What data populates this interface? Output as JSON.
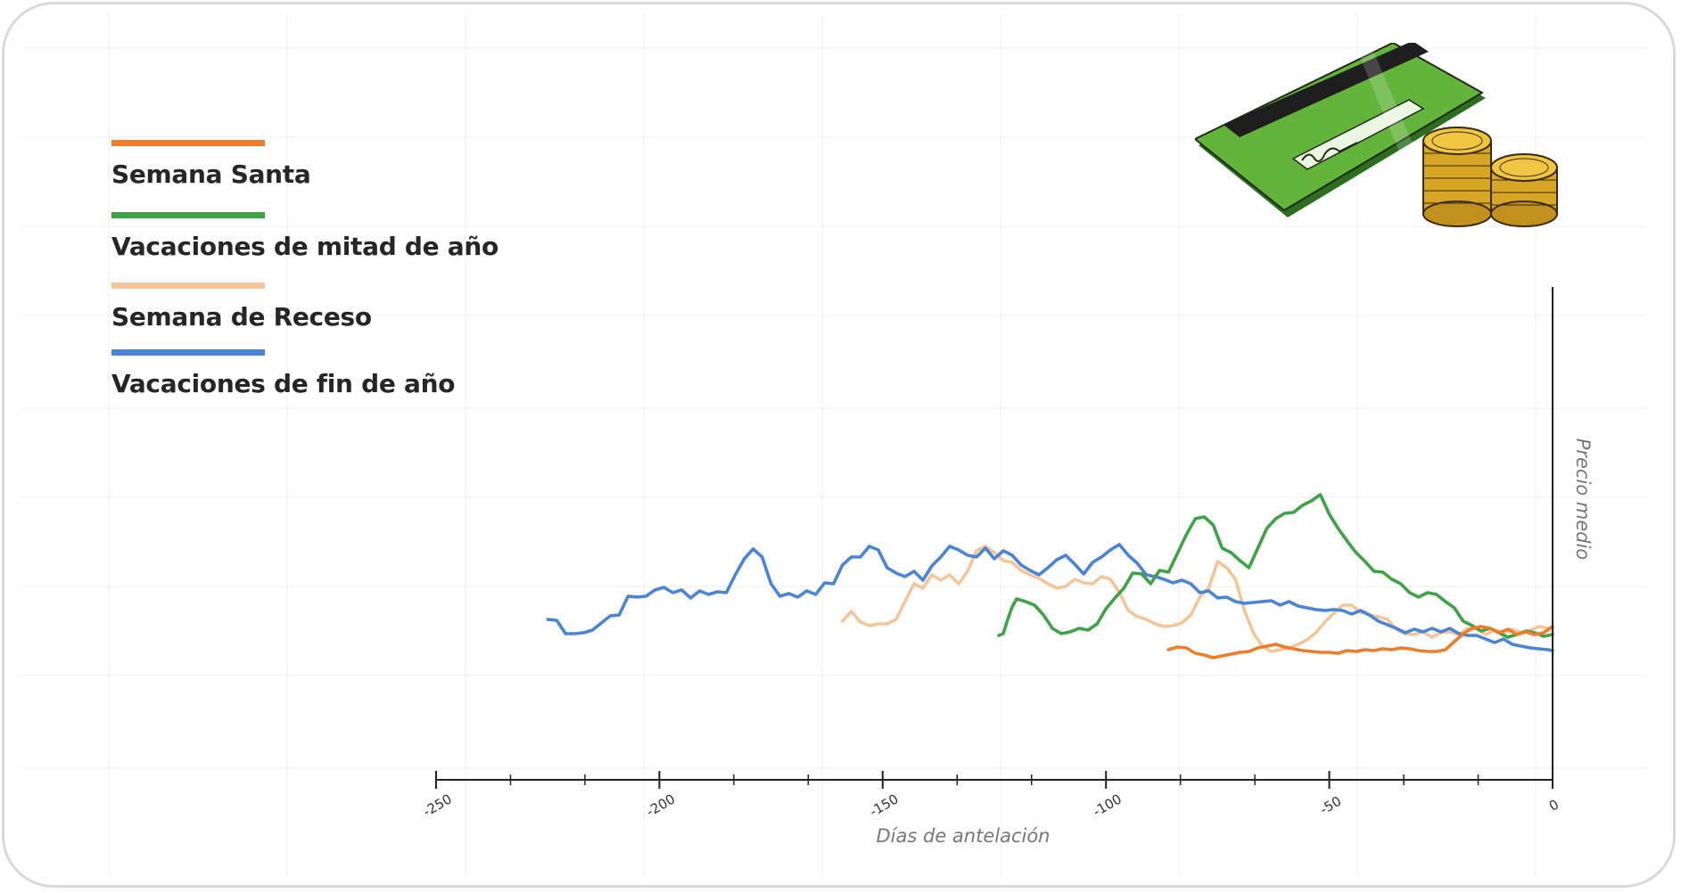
{
  "chart_data": {
    "type": "line",
    "xlabel": "Días de antelación",
    "ylabel": "Precio medio",
    "xlim": [
      -250,
      0
    ],
    "xticks": [
      -250,
      -200,
      -150,
      -100,
      -50,
      0
    ],
    "grid": true,
    "legend_position": "top-left",
    "series": [
      {
        "name": "Semana Santa",
        "color": "#f07c2a",
        "x": [
          -86,
          -84,
          -82,
          -80,
          -78,
          -76,
          -74,
          -72,
          -70,
          -68,
          -66,
          -64,
          -62,
          -60,
          -58,
          -56,
          -54,
          -52,
          -50,
          -48,
          -46,
          -44,
          -42,
          -40,
          -38,
          -36,
          -34,
          -32,
          -30,
          -28,
          -26,
          -24,
          -22,
          -20,
          -18,
          -16,
          -14,
          -12,
          -10,
          -8,
          -6,
          -4,
          -2,
          0
        ],
        "y": [
          0.46,
          0.49,
          0.48,
          0.42,
          0.4,
          0.37,
          0.39,
          0.41,
          0.43,
          0.44,
          0.48,
          0.5,
          0.52,
          0.49,
          0.47,
          0.45,
          0.44,
          0.43,
          0.43,
          0.42,
          0.45,
          0.44,
          0.46,
          0.45,
          0.47,
          0.46,
          0.48,
          0.47,
          0.45,
          0.44,
          0.44,
          0.46,
          0.55,
          0.64,
          0.7,
          0.72,
          0.7,
          0.65,
          0.69,
          0.63,
          0.66,
          0.63,
          0.65,
          0.72
        ]
      },
      {
        "name": "Vacaciones de mitad de año",
        "color": "#3ea346",
        "x": [
          -124,
          -123,
          -122,
          -121,
          -120,
          -118,
          -116,
          -114,
          -112,
          -110,
          -108,
          -106,
          -104,
          -102,
          -100,
          -98,
          -96,
          -94,
          -92,
          -90,
          -88,
          -86,
          -84,
          -82,
          -80,
          -78,
          -76,
          -74,
          -72,
          -70,
          -68,
          -66,
          -64,
          -62,
          -60,
          -58,
          -56,
          -54,
          -52,
          -50,
          -48,
          -46,
          -44,
          -42,
          -40,
          -38,
          -36,
          -34,
          -32,
          -30,
          -28,
          -26,
          -24,
          -22,
          -20,
          -18,
          -16,
          -14,
          -12,
          -10,
          -8,
          -6,
          -4,
          -2,
          0
        ],
        "y": [
          0.62,
          0.64,
          0.8,
          0.94,
          1.03,
          1.0,
          0.96,
          0.85,
          0.7,
          0.64,
          0.66,
          0.7,
          0.68,
          0.75,
          0.92,
          1.04,
          1.15,
          1.32,
          1.31,
          1.2,
          1.35,
          1.33,
          1.54,
          1.75,
          1.93,
          1.95,
          1.86,
          1.6,
          1.55,
          1.46,
          1.38,
          1.6,
          1.82,
          1.93,
          1.99,
          2.0,
          2.08,
          2.13,
          2.2,
          1.98,
          1.82,
          1.68,
          1.55,
          1.45,
          1.34,
          1.33,
          1.25,
          1.2,
          1.1,
          1.05,
          1.1,
          1.08,
          1.0,
          0.93,
          0.78,
          0.73,
          0.67,
          0.7,
          0.65,
          0.6,
          0.63,
          0.67,
          0.65,
          0.61,
          0.63
        ]
      },
      {
        "name": "Semana de Receso",
        "color": "#f5c59a",
        "x": [
          -159,
          -157,
          -155,
          -153,
          -151,
          -149,
          -147,
          -145,
          -143,
          -141,
          -139,
          -137,
          -135,
          -133,
          -131,
          -129,
          -127,
          -125,
          -123,
          -121,
          -119,
          -117,
          -115,
          -113,
          -111,
          -109,
          -107,
          -105,
          -103,
          -101,
          -99,
          -97,
          -95,
          -93,
          -91,
          -89,
          -87,
          -85,
          -83,
          -81,
          -79,
          -77,
          -75,
          -73,
          -71,
          -69,
          -67,
          -65,
          -63,
          -61,
          -59,
          -57,
          -55,
          -53,
          -51,
          -49,
          -47,
          -45,
          -43,
          -41,
          -39,
          -37,
          -35,
          -33,
          -31,
          -29,
          -27,
          -25,
          -23,
          -21,
          -19,
          -17,
          -15,
          -13,
          -11,
          -9,
          -7,
          -5,
          -3,
          -1,
          0
        ],
        "y": [
          0.78,
          0.89,
          0.77,
          0.73,
          0.75,
          0.75,
          0.8,
          1.0,
          1.2,
          1.15,
          1.3,
          1.24,
          1.3,
          1.2,
          1.34,
          1.57,
          1.62,
          1.55,
          1.46,
          1.44,
          1.35,
          1.3,
          1.26,
          1.2,
          1.15,
          1.17,
          1.25,
          1.21,
          1.2,
          1.28,
          1.25,
          1.1,
          0.9,
          0.83,
          0.8,
          0.75,
          0.72,
          0.73,
          0.76,
          0.85,
          1.05,
          1.15,
          1.45,
          1.38,
          1.25,
          0.9,
          0.65,
          0.5,
          0.44,
          0.46,
          0.48,
          0.52,
          0.57,
          0.65,
          0.77,
          0.87,
          0.96,
          0.96,
          0.88,
          0.85,
          0.83,
          0.8,
          0.69,
          0.64,
          0.63,
          0.66,
          0.6,
          0.65,
          0.66,
          0.63,
          0.7,
          0.69,
          0.63,
          0.68,
          0.65,
          0.69,
          0.65,
          0.68,
          0.72,
          0.7,
          0.7
        ]
      },
      {
        "name": "Vacaciones de fin de año",
        "color": "#4a84d4",
        "x": [
          -225,
          -223,
          -221,
          -219,
          -217,
          -215,
          -213,
          -211,
          -209,
          -207,
          -205,
          -203,
          -201,
          -199,
          -197,
          -195,
          -193,
          -191,
          -189,
          -187,
          -185,
          -183,
          -181,
          -179,
          -177,
          -175,
          -173,
          -171,
          -169,
          -167,
          -165,
          -163,
          -161,
          -159,
          -157,
          -155,
          -153,
          -151,
          -149,
          -147,
          -145,
          -143,
          -141,
          -139,
          -137,
          -135,
          -133,
          -131,
          -129,
          -127,
          -125,
          -123,
          -121,
          -119,
          -117,
          -115,
          -113,
          -111,
          -109,
          -107,
          -105,
          -103,
          -101,
          -99,
          -97,
          -95,
          -93,
          -91,
          -89,
          -87,
          -85,
          -83,
          -81,
          -79,
          -77,
          -75,
          -73,
          -71,
          -69,
          -67,
          -65,
          -63,
          -61,
          -59,
          -57,
          -55,
          -53,
          -51,
          -49,
          -47,
          -45,
          -43,
          -41,
          -39,
          -37,
          -35,
          -33,
          -31,
          -29,
          -27,
          -25,
          -23,
          -21,
          -19,
          -17,
          -15,
          -13,
          -11,
          -9,
          -7,
          -5,
          -3,
          -1,
          0
        ],
        "y": [
          0.8,
          0.79,
          0.64,
          0.64,
          0.65,
          0.68,
          0.76,
          0.84,
          0.85,
          1.06,
          1.05,
          1.06,
          1.13,
          1.16,
          1.1,
          1.13,
          1.04,
          1.12,
          1.08,
          1.11,
          1.1,
          1.3,
          1.48,
          1.59,
          1.5,
          1.2,
          1.06,
          1.09,
          1.05,
          1.12,
          1.08,
          1.21,
          1.2,
          1.41,
          1.5,
          1.5,
          1.62,
          1.58,
          1.38,
          1.32,
          1.28,
          1.34,
          1.24,
          1.4,
          1.5,
          1.62,
          1.58,
          1.52,
          1.5,
          1.6,
          1.48,
          1.57,
          1.52,
          1.41,
          1.35,
          1.3,
          1.38,
          1.47,
          1.52,
          1.42,
          1.31,
          1.44,
          1.5,
          1.58,
          1.64,
          1.52,
          1.43,
          1.3,
          1.28,
          1.25,
          1.21,
          1.24,
          1.2,
          1.1,
          1.12,
          1.04,
          1.05,
          1.0,
          0.98,
          0.99,
          1.0,
          1.01,
          0.96,
          1.0,
          0.95,
          0.93,
          0.91,
          0.9,
          0.91,
          0.9,
          0.86,
          0.9,
          0.85,
          0.78,
          0.74,
          0.7,
          0.65,
          0.69,
          0.66,
          0.7,
          0.66,
          0.7,
          0.64,
          0.62,
          0.62,
          0.58,
          0.54,
          0.58,
          0.52,
          0.5,
          0.48,
          0.47,
          0.46,
          0.45
        ]
      }
    ]
  }
}
